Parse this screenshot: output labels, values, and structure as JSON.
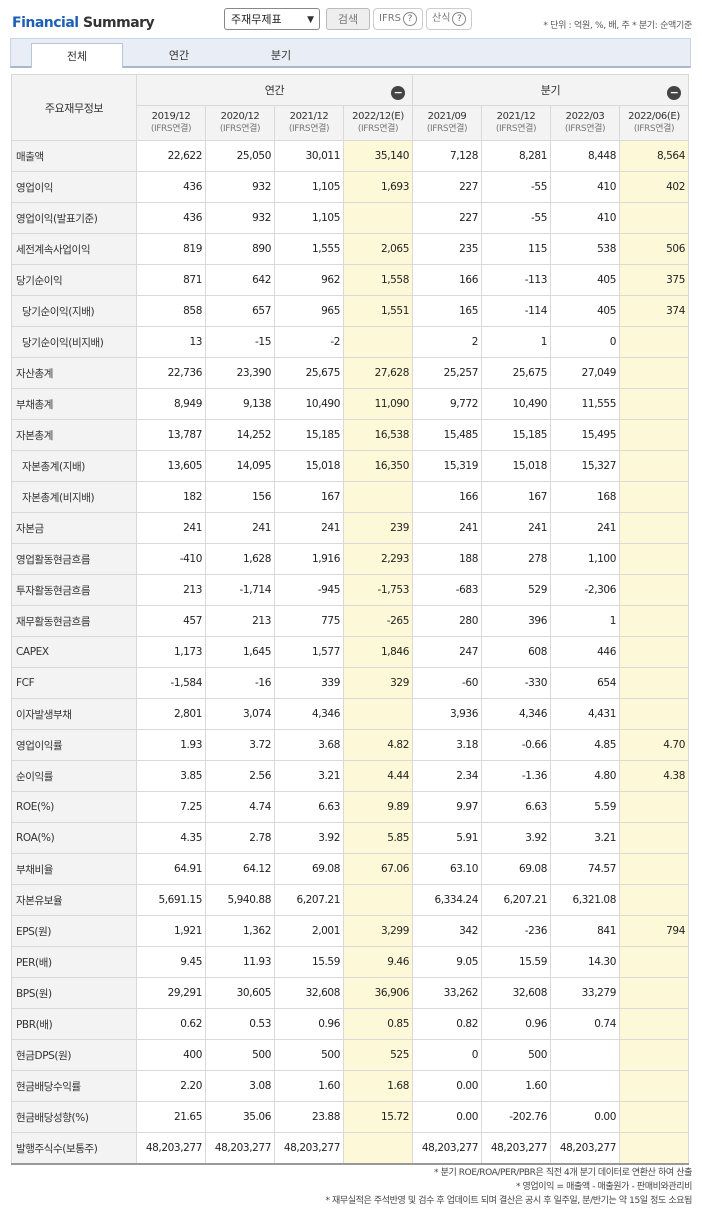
{
  "header": {
    "title_part1": "Financial",
    "title_part2": "Summary",
    "report_select_value": "주재무제표",
    "search_label": "검색",
    "ifrs_label": "IFRS",
    "formula_label": "산식",
    "unit_note": "* 단위 : 억원, %, 배, 주   * 분기: 순액기준"
  },
  "tabs": [
    "전체",
    "연간",
    "분기"
  ],
  "table": {
    "corner_label": "주요재무정보",
    "group_annual": "연간",
    "group_quarter": "분기",
    "periods": [
      {
        "p": "2019/12",
        "s": "(IFRS연결)"
      },
      {
        "p": "2020/12",
        "s": "(IFRS연결)"
      },
      {
        "p": "2021/12",
        "s": "(IFRS연결)"
      },
      {
        "p": "2022/12(E)",
        "s": "(IFRS연결)"
      },
      {
        "p": "2021/09",
        "s": "(IFRS연결)"
      },
      {
        "p": "2021/12",
        "s": "(IFRS연결)"
      },
      {
        "p": "2022/03",
        "s": "(IFRS연결)"
      },
      {
        "p": "2022/06(E)",
        "s": "(IFRS연결)"
      }
    ],
    "rows": [
      {
        "label": "매출액",
        "values": [
          "22,622",
          "25,050",
          "30,011",
          "35,140",
          "7,128",
          "8,281",
          "8,448",
          "8,564"
        ]
      },
      {
        "label": "영업이익",
        "values": [
          "436",
          "932",
          "1,105",
          "1,693",
          "227",
          "-55",
          "410",
          "402"
        ]
      },
      {
        "label": "영업이익(발표기준)",
        "values": [
          "436",
          "932",
          "1,105",
          "",
          "227",
          "-55",
          "410",
          ""
        ]
      },
      {
        "label": "세전계속사업이익",
        "values": [
          "819",
          "890",
          "1,555",
          "2,065",
          "235",
          "115",
          "538",
          "506"
        ]
      },
      {
        "label": "당기순이익",
        "values": [
          "871",
          "642",
          "962",
          "1,558",
          "166",
          "-113",
          "405",
          "375"
        ]
      },
      {
        "label": "당기순이익(지배)",
        "indent": true,
        "values": [
          "858",
          "657",
          "965",
          "1,551",
          "165",
          "-114",
          "405",
          "374"
        ]
      },
      {
        "label": "당기순이익(비지배)",
        "indent": true,
        "values": [
          "13",
          "-15",
          "-2",
          "",
          "2",
          "1",
          "0",
          ""
        ]
      },
      {
        "label": "자산총계",
        "values": [
          "22,736",
          "23,390",
          "25,675",
          "27,628",
          "25,257",
          "25,675",
          "27,049",
          ""
        ]
      },
      {
        "label": "부채총계",
        "values": [
          "8,949",
          "9,138",
          "10,490",
          "11,090",
          "9,772",
          "10,490",
          "11,555",
          ""
        ]
      },
      {
        "label": "자본총계",
        "values": [
          "13,787",
          "14,252",
          "15,185",
          "16,538",
          "15,485",
          "15,185",
          "15,495",
          ""
        ]
      },
      {
        "label": "자본총계(지배)",
        "indent": true,
        "values": [
          "13,605",
          "14,095",
          "15,018",
          "16,350",
          "15,319",
          "15,018",
          "15,327",
          ""
        ]
      },
      {
        "label": "자본총계(비지배)",
        "indent": true,
        "values": [
          "182",
          "156",
          "167",
          "",
          "166",
          "167",
          "168",
          ""
        ]
      },
      {
        "label": "자본금",
        "values": [
          "241",
          "241",
          "241",
          "239",
          "241",
          "241",
          "241",
          ""
        ]
      },
      {
        "label": "영업활동현금흐름",
        "values": [
          "-410",
          "1,628",
          "1,916",
          "2,293",
          "188",
          "278",
          "1,100",
          ""
        ]
      },
      {
        "label": "투자활동현금흐름",
        "values": [
          "213",
          "-1,714",
          "-945",
          "-1,753",
          "-683",
          "529",
          "-2,306",
          ""
        ]
      },
      {
        "label": "재무활동현금흐름",
        "values": [
          "457",
          "213",
          "775",
          "-265",
          "280",
          "396",
          "1",
          ""
        ]
      },
      {
        "label": "CAPEX",
        "values": [
          "1,173",
          "1,645",
          "1,577",
          "1,846",
          "247",
          "608",
          "446",
          ""
        ]
      },
      {
        "label": "FCF",
        "values": [
          "-1,584",
          "-16",
          "339",
          "329",
          "-60",
          "-330",
          "654",
          ""
        ]
      },
      {
        "label": "이자발생부채",
        "values": [
          "2,801",
          "3,074",
          "4,346",
          "",
          "3,936",
          "4,346",
          "4,431",
          ""
        ]
      },
      {
        "label": "영업이익률",
        "values": [
          "1.93",
          "3.72",
          "3.68",
          "4.82",
          "3.18",
          "-0.66",
          "4.85",
          "4.70"
        ]
      },
      {
        "label": "순이익률",
        "values": [
          "3.85",
          "2.56",
          "3.21",
          "4.44",
          "2.34",
          "-1.36",
          "4.80",
          "4.38"
        ]
      },
      {
        "label": "ROE(%)",
        "values": [
          "7.25",
          "4.74",
          "6.63",
          "9.89",
          "9.97",
          "6.63",
          "5.59",
          ""
        ]
      },
      {
        "label": "ROA(%)",
        "values": [
          "4.35",
          "2.78",
          "3.92",
          "5.85",
          "5.91",
          "3.92",
          "3.21",
          ""
        ]
      },
      {
        "label": "부채비율",
        "values": [
          "64.91",
          "64.12",
          "69.08",
          "67.06",
          "63.10",
          "69.08",
          "74.57",
          ""
        ]
      },
      {
        "label": "자본유보율",
        "values": [
          "5,691.15",
          "5,940.88",
          "6,207.21",
          "",
          "6,334.24",
          "6,207.21",
          "6,321.08",
          ""
        ]
      },
      {
        "label": "EPS(원)",
        "values": [
          "1,921",
          "1,362",
          "2,001",
          "3,299",
          "342",
          "-236",
          "841",
          "794"
        ]
      },
      {
        "label": "PER(배)",
        "values": [
          "9.45",
          "11.93",
          "15.59",
          "9.46",
          "9.05",
          "15.59",
          "14.30",
          ""
        ]
      },
      {
        "label": "BPS(원)",
        "values": [
          "29,291",
          "30,605",
          "32,608",
          "36,906",
          "33,262",
          "32,608",
          "33,279",
          ""
        ]
      },
      {
        "label": "PBR(배)",
        "values": [
          "0.62",
          "0.53",
          "0.96",
          "0.85",
          "0.82",
          "0.96",
          "0.74",
          ""
        ]
      },
      {
        "label": "현금DPS(원)",
        "values": [
          "400",
          "500",
          "500",
          "525",
          "0",
          "500",
          "",
          ""
        ]
      },
      {
        "label": "현금배당수익률",
        "values": [
          "2.20",
          "3.08",
          "1.60",
          "1.68",
          "0.00",
          "1.60",
          "",
          ""
        ]
      },
      {
        "label": "현금배당성향(%)",
        "values": [
          "21.65",
          "35.06",
          "23.88",
          "15.72",
          "0.00",
          "-202.76",
          "0.00",
          ""
        ]
      },
      {
        "label": "발행주식수(보통주)",
        "values": [
          "48,203,277",
          "48,203,277",
          "48,203,277",
          "",
          "48,203,277",
          "48,203,277",
          "48,203,277",
          ""
        ]
      }
    ]
  },
  "notes": [
    "* 분기 ROE/ROA/PER/PBR은 직전 4개 분기 데이터로 연환산 하여 산출",
    "* 영업이익 = 매출액 - 매출원가 - 판매비와관리비",
    "* 재무실적은 주석반영 및 검수 후 업데이트 되며 결산은 공시 후 일주일, 분/반기는 약 15일 정도 소요됨"
  ]
}
